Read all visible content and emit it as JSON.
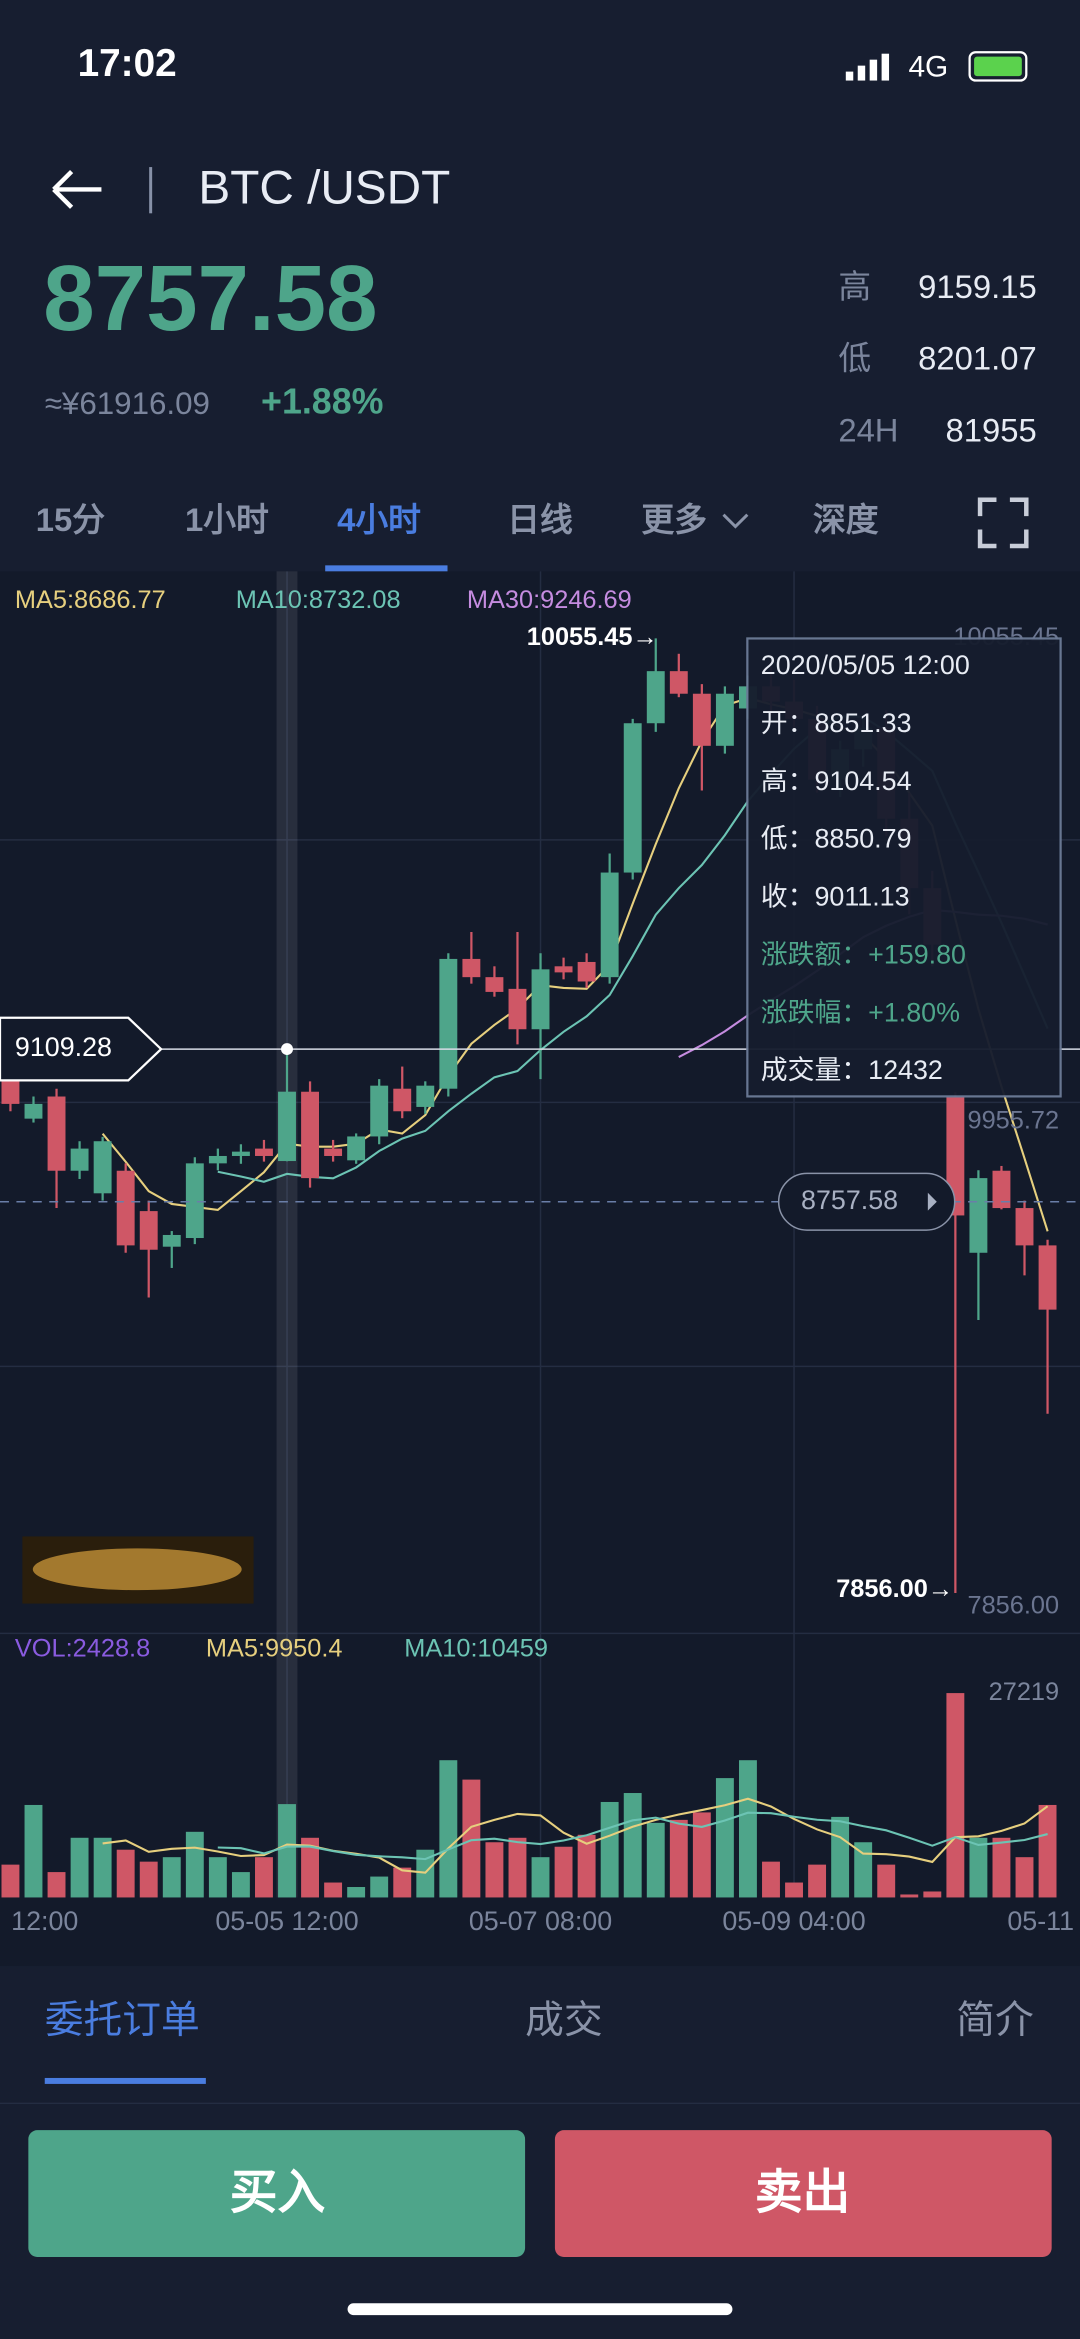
{
  "status_bar": {
    "time": "17:02",
    "network": "4G"
  },
  "header": {
    "pair": "BTC /USDT",
    "price": "8757.58",
    "cny": "≈¥61916.09",
    "change": "+1.88%",
    "stats": [
      {
        "label": "高",
        "value": "9159.15"
      },
      {
        "label": "低",
        "value": "8201.07"
      },
      {
        "label": "24H",
        "value": "81955"
      }
    ]
  },
  "tabs": [
    "15分",
    "1小时",
    "4小时",
    "日线",
    "更多",
    "深度"
  ],
  "chart_data": {
    "type": "candlestick",
    "up_color": "#4ea58a",
    "down_color": "#cf5766",
    "ma_legend": [
      {
        "label": "MA5:8686.77",
        "color": "#e6cf7e"
      },
      {
        "label": "MA10:8732.08",
        "color": "#6cc4b4"
      },
      {
        "label": "MA30:9246.69",
        "color": "#c58ce0"
      }
    ],
    "categories": [
      null,
      "12:00",
      null,
      null,
      null,
      null,
      null,
      null,
      null,
      null,
      null,
      null,
      "05-05 12:00",
      null,
      null,
      null,
      null,
      null,
      null,
      null,
      null,
      null,
      null,
      "05-07 08:00",
      null,
      null,
      null,
      null,
      null,
      null,
      null,
      null,
      null,
      null,
      "05-09 04:00",
      null,
      null,
      null,
      null,
      null,
      null,
      null,
      null,
      null,
      null,
      "05-11"
    ],
    "open": [
      9035,
      8949,
      9000,
      8829,
      8777,
      8829,
      8736,
      8654,
      8674,
      8846,
      8863,
      8880,
      8851.33,
      9011,
      8880,
      8853,
      8908,
      9018,
      8976,
      9018,
      9317,
      9275,
      9248,
      9155,
      9300,
      9310,
      9275,
      9516,
      9860,
      9980,
      9928,
      9808,
      9894,
      9945,
      9910,
      9870,
      9730,
      9800,
      9850,
      9640,
      9480,
      9000,
      8640,
      8829,
      8743,
      8657
    ],
    "high": [
      9069,
      9000,
      9018,
      8897,
      8907,
      8846,
      8760,
      8690,
      8860,
      8880,
      8890,
      8900,
      9104.54,
      9035,
      8900,
      8915,
      9040,
      9069,
      9035,
      9330,
      9379,
      9300,
      9379,
      9330,
      9320,
      9330,
      9560,
      9870,
      10055.45,
      10020,
      9950,
      9945,
      9970,
      9990,
      9960,
      9900,
      9820,
      9880,
      9890,
      9700,
      9520,
      9010,
      8830,
      8840,
      8760,
      8670
    ],
    "low": [
      8966,
      8940,
      8743,
      8810,
      8760,
      8640,
      8537,
      8605,
      8660,
      8830,
      8845,
      8850,
      8850.79,
      8790,
      8850,
      8845,
      8890,
      8950,
      8960,
      9000,
      9260,
      9230,
      9120,
      9040,
      9270,
      9250,
      9260,
      9500,
      9840,
      9920,
      9705,
      9790,
      9870,
      9880,
      9850,
      9700,
      9690,
      9760,
      9600,
      9420,
      9300,
      7856,
      8485,
      8740,
      8588,
      8269
    ],
    "close": [
      8983,
      8983,
      8829,
      8880,
      8897,
      8657,
      8647,
      8681,
      8846,
      8863,
      8873,
      8863,
      9011.13,
      8812,
      8863,
      8908,
      9025,
      8966,
      9025,
      9317,
      9275,
      9241,
      9155,
      9293,
      9286,
      9265,
      9516,
      9860,
      9980,
      9928,
      9808,
      9928,
      9945,
      9910,
      9870,
      9730,
      9800,
      9850,
      9640,
      9480,
      9350,
      8726,
      8812,
      8743,
      8657,
      8509
    ],
    "volume": [
      4371,
      12319,
      3378,
      7948,
      7948,
      6358,
      4769,
      5365,
      8743,
      5365,
      3378,
      5365,
      12432,
      7948,
      1987,
      1391,
      2782,
      3974,
      6358,
      18280,
      15697,
      7352,
      7948,
      5365,
      6756,
      8345,
      12717,
      13909,
      9935,
      10332,
      11326,
      15896,
      18280,
      4769,
      1987,
      4371,
      10730,
      7352,
      4371,
      397,
      795,
      27219,
      7948,
      7948,
      5365,
      12319
    ],
    "ylim": [
      7763,
      10210
    ],
    "volume_ylim": [
      0,
      27219
    ],
    "high_marker": 10055.45,
    "low_marker": {
      "value": 7856,
      "label": "7856.00"
    },
    "right_labels": [
      "10055.45",
      "9955.72",
      "7856.00"
    ],
    "crosshair": 9109.28,
    "last_price": 8757.58,
    "tooltip": {
      "date": "2020/05/05 12:00",
      "rows": [
        {
          "label": "开：",
          "value": "8851.33",
          "color": "#e8ecf4"
        },
        {
          "label": "高：",
          "value": "9104.54",
          "color": "#e8ecf4"
        },
        {
          "label": "低：",
          "value": "8850.79",
          "color": "#e8ecf4"
        },
        {
          "label": "收：",
          "value": "9011.13",
          "color": "#e8ecf4"
        },
        {
          "label": "涨跌额：",
          "value": "+159.80",
          "color": "#4ea58a"
        },
        {
          "label": "涨跌幅：",
          "value": "+1.80%",
          "color": "#4ea58a"
        },
        {
          "label": "成交量：",
          "value": "12432",
          "color": "#e8ecf4"
        }
      ]
    },
    "volume_legend": [
      {
        "label": "VOL:2428.8",
        "color": "#8a5be0"
      },
      {
        "label": "MA5:9950.4",
        "color": "#e6cf7e"
      },
      {
        "label": "MA10:10459",
        "color": "#6cc4b4"
      }
    ]
  },
  "bottom_tabs": [
    "委托订单",
    "成交",
    "简介"
  ],
  "buttons": [
    "买入",
    "卖出"
  ]
}
